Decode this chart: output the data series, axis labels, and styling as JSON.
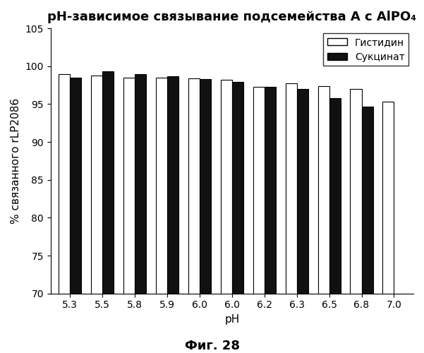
{
  "title": "pH-зависимое связывание подсемейства А с AlPO₄",
  "xlabel": "pH",
  "ylabel": "% связанного rLP2086",
  "caption": "Фиг. 28",
  "legend_labels": [
    "Гистидин",
    "Сукцинат"
  ],
  "x_labels": [
    "5.3",
    "5.5",
    "5.8",
    "5.9",
    "6.0",
    "6.0",
    "6.2",
    "6.3",
    "6.5",
    "6.8",
    "7.0"
  ],
  "histidin_values": [
    99.0,
    98.8,
    98.5,
    98.5,
    98.4,
    98.2,
    97.3,
    97.7,
    97.4,
    97.0,
    95.3
  ],
  "succinate_values": [
    98.5,
    99.3,
    99.0,
    98.7,
    98.3,
    97.9,
    97.3,
    97.0,
    95.8,
    94.7,
    null
  ],
  "ylim": [
    70,
    105
  ],
  "yticks": [
    70,
    75,
    80,
    85,
    90,
    95,
    100,
    105
  ],
  "bar_width": 0.35,
  "histidin_color": "#ffffff",
  "succinate_color": "#111111",
  "edge_color": "#000000",
  "title_fontsize": 13,
  "axis_fontsize": 11,
  "tick_fontsize": 10,
  "caption_fontsize": 13
}
